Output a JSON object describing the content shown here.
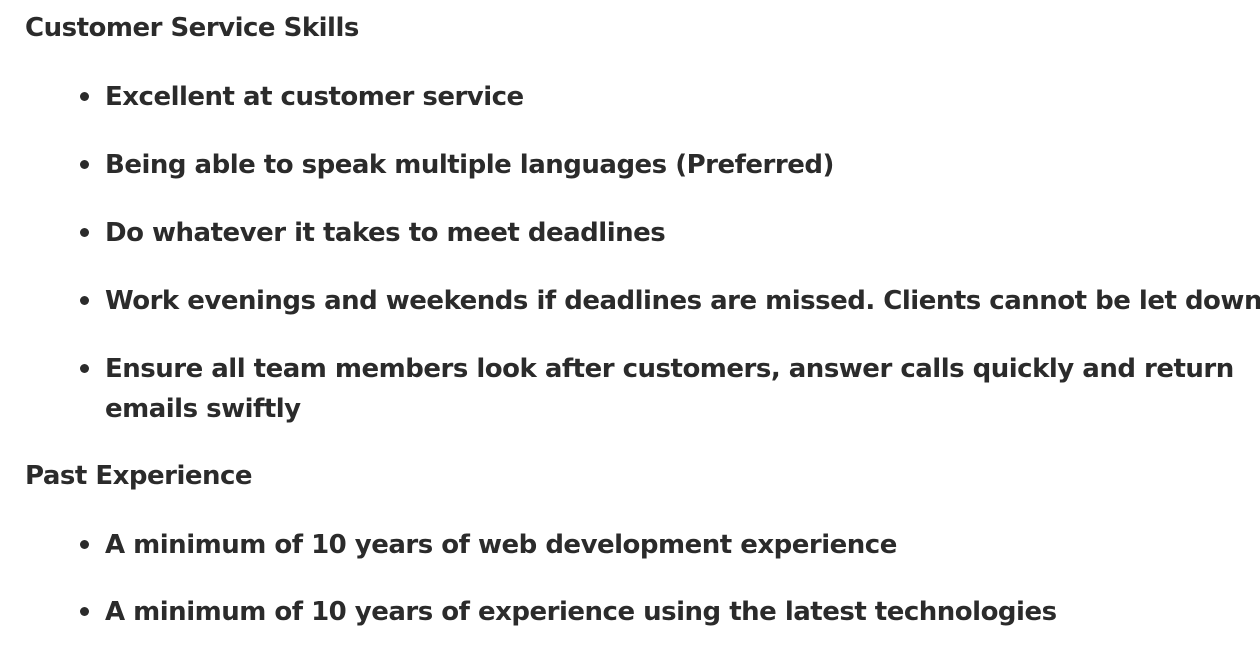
{
  "sections": [
    {
      "heading": "Customer Service Skills",
      "items": [
        "Excellent at customer service",
        "Being able to speak multiple languages (Preferred)",
        "Do whatever it takes to meet deadlines",
        "Work evenings and weekends if deadlines are missed. Clients cannot be let down",
        "Ensure all team members look after customers, answer calls quickly and return emails swiftly"
      ]
    },
    {
      "heading": "Past Experience",
      "items": [
        "A minimum of 10 years of web development experience",
        "A minimum of 10 years of experience using the latest technologies"
      ]
    }
  ]
}
